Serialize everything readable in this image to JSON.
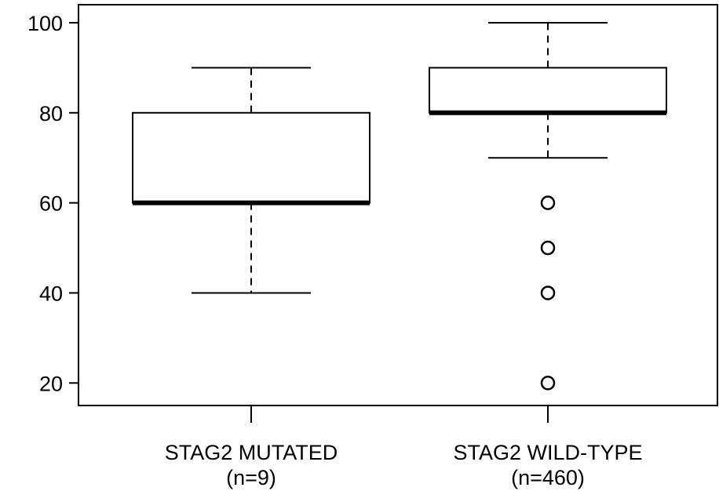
{
  "chart_data": {
    "type": "box",
    "ylim": [
      15,
      104
    ],
    "yticks": [
      20,
      40,
      60,
      80,
      100
    ],
    "ytick_labels": [
      "20",
      "40",
      "60",
      "80",
      "100"
    ],
    "groups": [
      {
        "label": "STAG2 MUTATED",
        "n_label": "(n=9)",
        "min": 40,
        "q1": 60,
        "median": 60,
        "q3": 80,
        "max": 90,
        "outliers": []
      },
      {
        "label": "STAG2 WILD-TYPE",
        "n_label": "(n=460)",
        "min": 70,
        "q1": 80,
        "median": 80,
        "q3": 90,
        "max": 100,
        "outliers": [
          60,
          50,
          40,
          20
        ]
      }
    ],
    "grid": false,
    "colors": {
      "stroke": "#000000",
      "background": "#ffffff"
    }
  }
}
